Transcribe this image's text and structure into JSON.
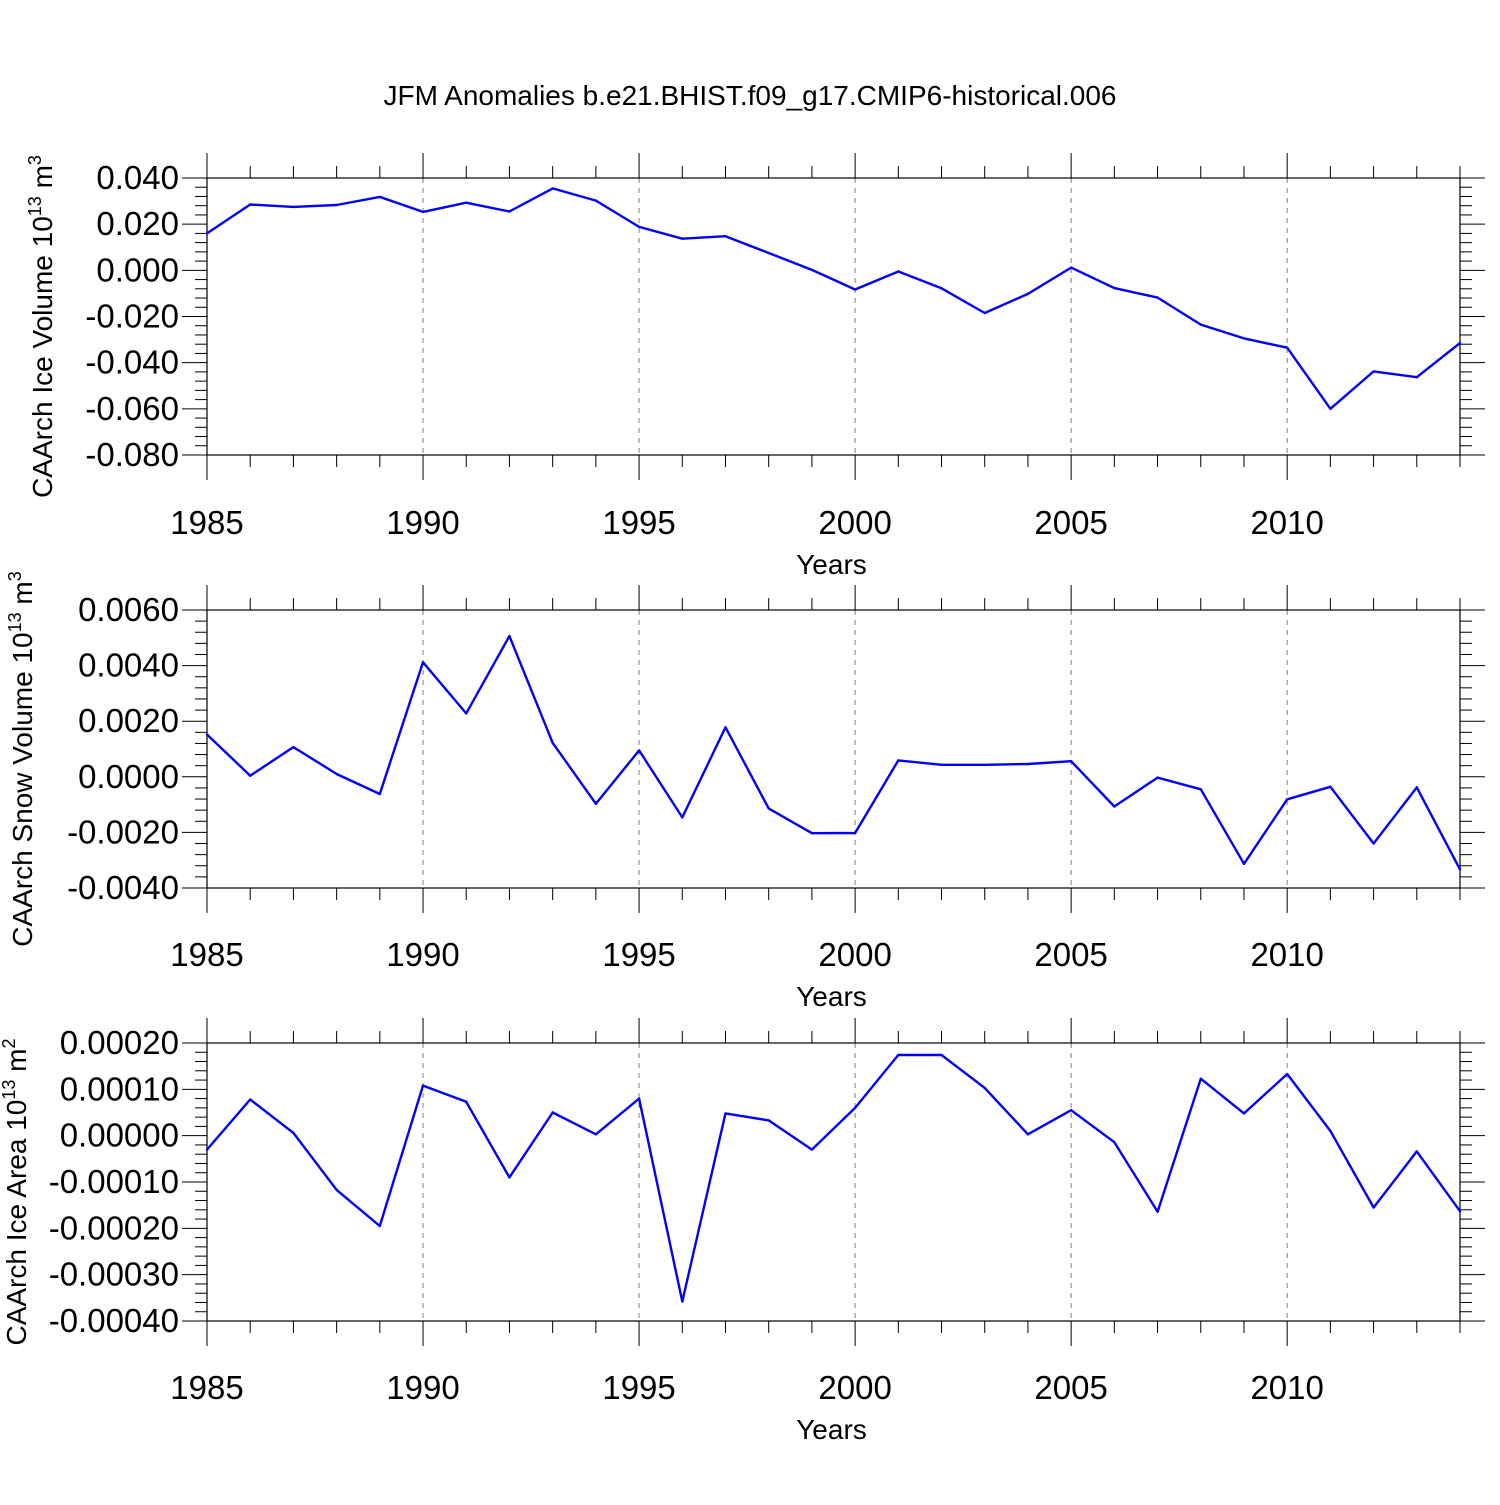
{
  "title": "JFM Anomalies b.e21.BHIST.f09_g17.CMIP6-historical.006",
  "colors": {
    "line": "#0000ff",
    "axis": "#000000",
    "grid": "#808080"
  },
  "chart_data": [
    {
      "type": "line",
      "ylabel": "CAArch Ice Volume 10",
      "ylabel_exp": "13",
      "ylabel_unit": " m",
      "ylabel_unit_exp": "3",
      "xlabel": "Years",
      "xlim": [
        1985,
        2014
      ],
      "ylim": [
        -0.08,
        0.04
      ],
      "xticks": [
        1985,
        1990,
        1995,
        2000,
        2005,
        2010
      ],
      "yticks": [
        -0.08,
        -0.06,
        -0.04,
        -0.02,
        0.0,
        0.02,
        0.04
      ],
      "ytick_labels": [
        "-0.080",
        "-0.060",
        "-0.040",
        "-0.020",
        "0.000",
        "0.020",
        "0.040"
      ],
      "grid_x": true,
      "series": [
        {
          "x": [
            1985,
            1986,
            1987,
            1988,
            1989,
            1990,
            1991,
            1992,
            1993,
            1994,
            1995,
            1996,
            1997,
            1998,
            1999,
            2000,
            2001,
            2002,
            2003,
            2004,
            2005,
            2006,
            2007,
            2008,
            2009,
            2010,
            2011,
            2012,
            2013,
            2014
          ],
          "values": [
            0.016,
            0.0285,
            0.0275,
            0.0283,
            0.0318,
            0.0253,
            0.0293,
            0.0255,
            0.0355,
            0.0302,
            0.0188,
            0.0137,
            0.0148,
            0.0075,
            0.0002,
            -0.0083,
            -0.0005,
            -0.0078,
            -0.0185,
            -0.0102,
            0.0012,
            -0.0077,
            -0.0118,
            -0.0235,
            -0.0295,
            -0.0335,
            -0.06,
            -0.0438,
            -0.0463,
            -0.0315
          ]
        }
      ]
    },
    {
      "type": "line",
      "ylabel": "CAArch Snow Volume 10",
      "ylabel_exp": "13",
      "ylabel_unit": " m",
      "ylabel_unit_exp": "3",
      "xlabel": "Years",
      "xlim": [
        1985,
        2014
      ],
      "ylim": [
        -0.004,
        0.006
      ],
      "xticks": [
        1985,
        1990,
        1995,
        2000,
        2005,
        2010
      ],
      "yticks": [
        -0.004,
        -0.002,
        0.0,
        0.002,
        0.004,
        0.006
      ],
      "ytick_labels": [
        "-0.0040",
        "-0.0020",
        "0.0000",
        "0.0020",
        "0.0040",
        "0.0060"
      ],
      "grid_x": true,
      "series": [
        {
          "x": [
            1985,
            1986,
            1987,
            1988,
            1989,
            1990,
            1991,
            1992,
            1993,
            1994,
            1995,
            1996,
            1997,
            1998,
            1999,
            2000,
            2001,
            2002,
            2003,
            2004,
            2005,
            2006,
            2007,
            2008,
            2009,
            2010,
            2011,
            2012,
            2013,
            2014
          ],
          "values": [
            0.00152,
            4e-05,
            0.00107,
            0.0001,
            -0.00062,
            0.00412,
            0.00228,
            0.00506,
            0.00122,
            -0.00097,
            0.00095,
            -0.00146,
            0.00178,
            -0.00114,
            -0.00203,
            -0.00202,
            0.00059,
            0.00043,
            0.00043,
            0.00046,
            0.00056,
            -0.00107,
            -3e-05,
            -0.00045,
            -0.00313,
            -0.00081,
            -0.00036,
            -0.0024,
            -0.00038,
            -0.00333
          ]
        }
      ]
    },
    {
      "type": "line",
      "ylabel": "CAArch Ice Area 10",
      "ylabel_exp": "13",
      "ylabel_unit": " m",
      "ylabel_unit_exp": "2",
      "xlabel": "Years",
      "xlim": [
        1985,
        2014
      ],
      "ylim": [
        -0.0004,
        0.0002
      ],
      "xticks": [
        1985,
        1990,
        1995,
        2000,
        2005,
        2010
      ],
      "yticks": [
        -0.0004,
        -0.0003,
        -0.0002,
        -0.0001,
        0.0,
        0.0001,
        0.0002
      ],
      "ytick_labels": [
        "-0.00040",
        "-0.00030",
        "-0.00020",
        "-0.00010",
        "0.00000",
        "0.00010",
        "0.00020"
      ],
      "grid_x": true,
      "series": [
        {
          "x": [
            1985,
            1986,
            1987,
            1988,
            1989,
            1990,
            1991,
            1992,
            1993,
            1994,
            1995,
            1996,
            1997,
            1998,
            1999,
            2000,
            2001,
            2002,
            2003,
            2004,
            2005,
            2006,
            2007,
            2008,
            2009,
            2010,
            2011,
            2012,
            2013,
            2014
          ],
          "values": [
            -3e-05,
            7.8e-05,
            6e-06,
            -0.000117,
            -0.000195,
            0.000108,
            7.3e-05,
            -9e-05,
            5e-05,
            3e-06,
            8e-05,
            -0.000358,
            4.8e-05,
            3.3e-05,
            -3e-05,
            6e-05,
            0.000174,
            0.000174,
            0.000103,
            3e-06,
            5.5e-05,
            -1.4e-05,
            -0.000164,
            0.000123,
            4.8e-05,
            0.000133,
            1e-05,
            -0.000155,
            -3.4e-05,
            -0.000163
          ]
        }
      ]
    }
  ]
}
